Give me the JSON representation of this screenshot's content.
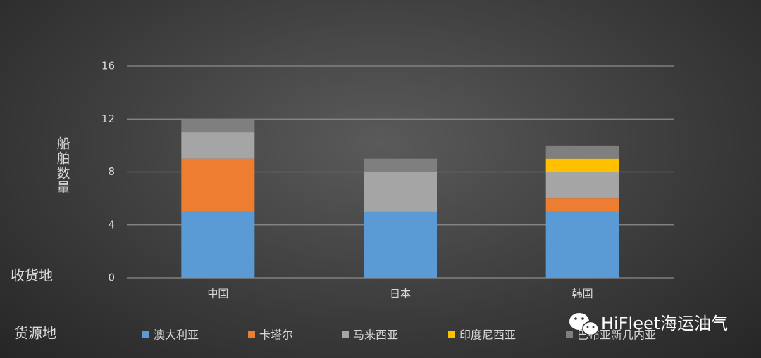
{
  "chart_data": {
    "type": "bar",
    "stacked": true,
    "ylabel": "船舶数量",
    "xlabel": "收货地",
    "legend_title": "货源地",
    "categories": [
      "中国",
      "日本",
      "韩国"
    ],
    "series": [
      {
        "name": "澳大利亚",
        "color": "#5b9bd5",
        "values": [
          5,
          5,
          5
        ]
      },
      {
        "name": "卡塔尔",
        "color": "#ed7d31",
        "values": [
          4,
          0,
          1
        ]
      },
      {
        "name": "马来西亚",
        "color": "#a5a5a5",
        "values": [
          2,
          3,
          2
        ]
      },
      {
        "name": "印度尼西亚",
        "color": "#ffc000",
        "values": [
          0,
          0,
          1
        ]
      },
      {
        "name": "巴布亚新几内亚",
        "color": "#7f7f7f",
        "values": [
          1,
          1,
          1
        ]
      }
    ],
    "ylim": [
      0,
      16
    ],
    "yticks": [
      0,
      4,
      8,
      12,
      16
    ],
    "grid": true,
    "legend": "bottom"
  },
  "watermark": "HiFleet海运油气"
}
